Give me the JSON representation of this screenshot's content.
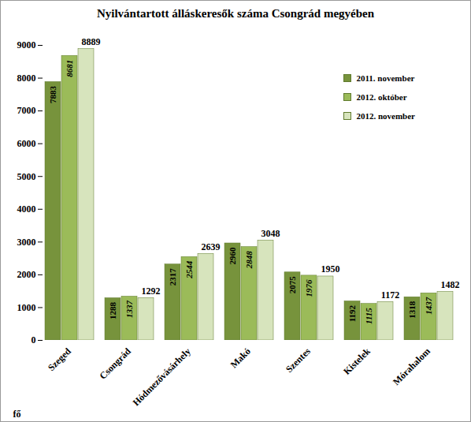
{
  "chart_data": {
    "type": "bar",
    "title": "Nyilvántartott álláskeresők száma Csongrád megyében",
    "y_label": "fő",
    "categories": [
      "Szeged",
      "Csongrád",
      "Hódmezővásárhely",
      "Makó",
      "Szentes",
      "Kistelek",
      "Mórahalom"
    ],
    "series": [
      {
        "name": "2011. november",
        "color": "#77933c",
        "values": [
          7883,
          1288,
          2317,
          2960,
          2075,
          1192,
          1318
        ]
      },
      {
        "name": "2012. október",
        "color": "#9bbb59",
        "values": [
          8681,
          1337,
          2544,
          2848,
          1976,
          1115,
          1437
        ]
      },
      {
        "name": "2012. november",
        "color": "#d7e4bd",
        "values": [
          8889,
          1292,
          2639,
          3048,
          1950,
          1172,
          1482
        ]
      }
    ],
    "ylim": [
      0,
      9000
    ],
    "yticks": [
      0,
      1000,
      2000,
      3000,
      4000,
      5000,
      6000,
      7000,
      8000,
      9000
    ],
    "grid": false,
    "legend": "top-right",
    "data_labels": true
  }
}
